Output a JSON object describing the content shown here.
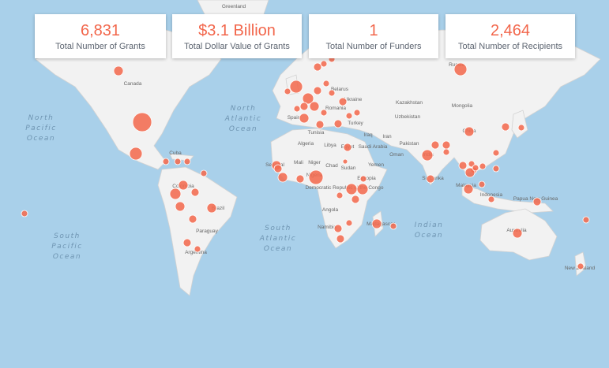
{
  "kpis": [
    {
      "value": "6,831",
      "label": "Total Number of Grants"
    },
    {
      "value": "$3.1 Billion",
      "label": "Total Dollar Value of Grants"
    },
    {
      "value": "1",
      "label": "Total Number of Funders"
    },
    {
      "value": "2,464",
      "label": "Total Number of Recipients"
    }
  ],
  "oceans": {
    "north_pacific": [
      "North",
      "Pacific",
      "Ocean"
    ],
    "north_atlantic": [
      "North",
      "Atlantic",
      "Ocean"
    ],
    "south_atlantic": [
      "South",
      "Atlantic",
      "Ocean"
    ],
    "south_pacific": [
      "South",
      "Pacific",
      "Ocean"
    ],
    "indian": [
      "Indian",
      "Ocean"
    ]
  },
  "countries": {
    "greenland": "Greenland",
    "canada": "Canada",
    "cuba": "Cuba",
    "colombia": "Colombia",
    "brazil": "Brazil",
    "paraguay": "Paraguay",
    "argentina": "Argentina",
    "spain": "Spain",
    "belarus": "Belarus",
    "ukraine": "Ukraine",
    "romania": "Romania",
    "turkey": "Turkey",
    "russia": "Russia",
    "kazakhstan": "Kazakhstan",
    "mongolia": "Mongolia",
    "uzbekistan": "Uzbekistan",
    "china": "China",
    "tunisia": "Tunisia",
    "algeria": "Algeria",
    "libya": "Libya",
    "egypt": "Egypt",
    "iraq": "Iraq",
    "iran": "Iran",
    "saudi_arabia": "Saudi Arabia",
    "oman": "Oman",
    "pakistan": "Pakistan",
    "india": "India",
    "mali": "Mali",
    "niger": "Niger",
    "chad": "Chad",
    "sudan": "Sudan",
    "yemen": "Yemen",
    "ethiopia": "Ethiopia",
    "drc": "Democratic Republic of the Congo",
    "angola": "Angola",
    "namibia": "Namibia",
    "madagascar": "Madagascar",
    "sri_lanka": "Sri Lanka",
    "malaysia": "Malaysia",
    "indonesia": "Indonesia",
    "papua_new_guinea": "Papua New Guinea",
    "australia": "Australia",
    "new_zealand": "New Zealand",
    "senegal": "Senegal",
    "nigeria": "Nigeria"
  },
  "colors": {
    "bubble": "#f26b50",
    "kpi_value": "#f2664b",
    "ocean": "#a9d0ea",
    "land": "#f2f2f2"
  }
}
